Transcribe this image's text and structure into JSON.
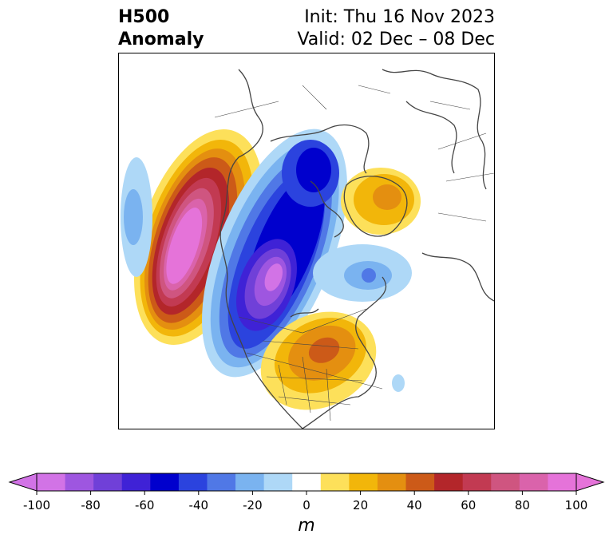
{
  "title": {
    "left_line1": "H500",
    "left_line2": "Anomaly",
    "right_line1": "Init: Thu 16 Nov 2023",
    "right_line2": "Valid: 02 Dec – 08 Dec"
  },
  "colorbar": {
    "unit": "m",
    "ticks": [
      "-100",
      "-80",
      "-60",
      "-40",
      "-20",
      "0",
      "20",
      "40",
      "60",
      "80",
      "100"
    ],
    "colors": [
      "#d273e6",
      "#9e56e0",
      "#7040d8",
      "#3f22d6",
      "#0000cd",
      "#2b43de",
      "#5078e6",
      "#7ab3f0",
      "#aed8f7",
      "#ffffff",
      "#fde05a",
      "#f2b60a",
      "#e48f10",
      "#cc5a18",
      "#b3262a",
      "#c23a52",
      "#cf5580",
      "#da63ab",
      "#e573d9"
    ],
    "extend": "both"
  },
  "map": {
    "projection": "polar stereographic (north)",
    "features": [
      "coastlines",
      "country borders",
      "state borders"
    ]
  }
}
